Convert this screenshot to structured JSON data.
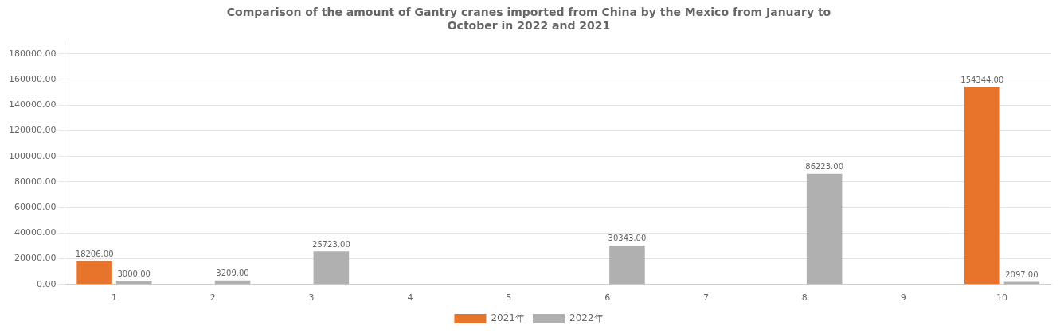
{
  "chart_data": {
    "type": "bar",
    "title": "Comparison of the amount of Gantry cranes imported from China by the Mexico from January to\nOctober in 2022 and 2021",
    "categories": [
      "1",
      "2",
      "3",
      "4",
      "5",
      "6",
      "7",
      "8",
      "9",
      "10"
    ],
    "series": [
      {
        "name": "2021年",
        "color": "#E8732A",
        "values": [
          18206,
          0,
          0,
          0,
          0,
          0,
          0,
          0,
          0,
          154344
        ],
        "value_labels": [
          "18206.00",
          null,
          null,
          null,
          null,
          null,
          null,
          null,
          null,
          "154344.00"
        ]
      },
      {
        "name": "2022年",
        "color": "#B0B0B0",
        "values": [
          3000,
          3209,
          25723,
          0,
          0,
          30343,
          0,
          86223,
          0,
          2097
        ],
        "value_labels": [
          "3000.00",
          "3209.00",
          "25723.00",
          null,
          null,
          "30343.00",
          null,
          "86223.00",
          null,
          "2097.00"
        ]
      }
    ],
    "ylim": [
      0,
      190000
    ],
    "yticks": [
      {
        "value": 0,
        "label": "0.00"
      },
      {
        "value": 20000,
        "label": "20000.00"
      },
      {
        "value": 40000,
        "label": "40000.00"
      },
      {
        "value": 60000,
        "label": "60000.00"
      },
      {
        "value": 80000,
        "label": "80000.00"
      },
      {
        "value": 100000,
        "label": "100000.00"
      },
      {
        "value": 120000,
        "label": "120000.00"
      },
      {
        "value": 140000,
        "label": "140000.00"
      },
      {
        "value": 160000,
        "label": "160000.00"
      },
      {
        "value": 180000,
        "label": "180000.00"
      }
    ],
    "grid": true,
    "legend": "bottom",
    "data_labels": true
  }
}
